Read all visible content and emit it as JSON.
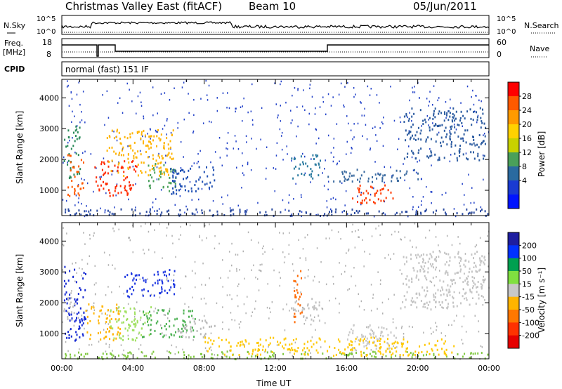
{
  "header": {
    "title": "Christmas Valley East (fitACF)",
    "beam": "Beam 10",
    "date": "05/Jun/2011"
  },
  "strip_top": {
    "left_label": "N.Sky",
    "right_label": "N.Search",
    "left_ticks": [
      "10^5",
      "10^0"
    ],
    "right_ticks": [
      "10^5",
      "10^0"
    ]
  },
  "strip_freq": {
    "left_label_1": "Freq.",
    "left_label_2": "[MHz]",
    "right_label": "Nave",
    "left_ticks": [
      "18",
      "8"
    ],
    "right_ticks": [
      "60",
      "0"
    ]
  },
  "cpid": {
    "label": "CPID",
    "mode": "normal (fast) 151 IF"
  },
  "chart_data": [
    {
      "type": "heatmap",
      "name": "power",
      "ylabel": "Slant Range [km]",
      "yticks": [
        "1000",
        "2000",
        "3000",
        "4000"
      ],
      "xlim_hours": [
        0,
        24
      ],
      "ylim_km": [
        180,
        4600
      ],
      "colorbar_label": "Power [dB]",
      "colorbar_ticks": [
        "28",
        "24",
        "20",
        "16",
        "12",
        "8",
        "4"
      ],
      "colors": [
        "#ff0000",
        "#ff5a00",
        "#ff9a00",
        "#ffd200",
        "#c8d200",
        "#4aa05a",
        "#2a6aa0",
        "#1a3ad2",
        "#0014ff"
      ],
      "scatter_color": "#2040c8",
      "features": [
        {
          "t0": 0.1,
          "t1": 1.0,
          "r0": 1400,
          "r1": 3100,
          "color": "#2a8a5a"
        },
        {
          "t0": 0.3,
          "t1": 1.2,
          "r0": 800,
          "r1": 2200,
          "color": "#ff5a00"
        },
        {
          "t0": 1.8,
          "t1": 4.2,
          "r0": 850,
          "r1": 2000,
          "color": "#ff2a00"
        },
        {
          "t0": 2.5,
          "t1": 6.3,
          "r0": 1500,
          "r1": 3000,
          "color": "#ffb400"
        },
        {
          "t0": 4.8,
          "t1": 6.5,
          "r0": 1000,
          "r1": 1900,
          "color": "#4aa05a"
        },
        {
          "t0": 6.0,
          "t1": 8.6,
          "r0": 900,
          "r1": 1800,
          "color": "#2050b4"
        },
        {
          "t0": 12.8,
          "t1": 14.5,
          "r0": 1400,
          "r1": 2200,
          "color": "#2a7aa0"
        },
        {
          "t0": 16.3,
          "t1": 18.8,
          "r0": 600,
          "r1": 1200,
          "color": "#ff3a00"
        },
        {
          "t0": 14.8,
          "t1": 20.0,
          "r0": 1300,
          "r1": 1700,
          "color": "#3a6aa0"
        },
        {
          "t0": 19.2,
          "t1": 23.8,
          "r0": 2000,
          "r1": 3700,
          "color": "#2a5aa0"
        },
        {
          "t0": 0.0,
          "t1": 24.0,
          "r0": 200,
          "r1": 420,
          "color": "#2a4aa0"
        }
      ]
    },
    {
      "type": "heatmap",
      "name": "velocity",
      "ylabel": "Slant Range [km]",
      "yticks": [
        "1000",
        "2000",
        "3000",
        "4000"
      ],
      "xlim_hours": [
        0,
        24
      ],
      "ylim_km": [
        180,
        4600
      ],
      "xticks": [
        "00:00",
        "04:00",
        "08:00",
        "12:00",
        "16:00",
        "20:00",
        "00:00"
      ],
      "xlabel": "Time UT",
      "colorbar_label": "Velocity [m s⁻¹]",
      "colorbar_ticks": [
        "200",
        "100",
        "50",
        "15",
        "-15",
        "-50",
        "-100",
        "-200"
      ],
      "colors": [
        "#1e1ea0",
        "#0032ff",
        "#00a050",
        "#80e040",
        "#c8c8c8",
        "#ffb400",
        "#ff7800",
        "#ff3200",
        "#e60000"
      ],
      "scatter_color": "#b0b0b0",
      "features": [
        {
          "t0": 0.1,
          "t1": 1.3,
          "r0": 800,
          "r1": 3200,
          "color": "#1428d2"
        },
        {
          "t0": 0.0,
          "t1": 0.7,
          "r0": 1500,
          "r1": 2300,
          "color": "#c0c0c0"
        },
        {
          "t0": 1.3,
          "t1": 3.3,
          "r0": 800,
          "r1": 2000,
          "color": "#ffb400"
        },
        {
          "t0": 2.6,
          "t1": 5.0,
          "r0": 800,
          "r1": 1900,
          "color": "#a0e060"
        },
        {
          "t0": 3.5,
          "t1": 6.3,
          "r0": 2200,
          "r1": 3100,
          "color": "#1a34e0"
        },
        {
          "t0": 4.5,
          "t1": 7.5,
          "r0": 900,
          "r1": 1800,
          "color": "#4ab050"
        },
        {
          "t0": 6.5,
          "t1": 8.6,
          "r0": 900,
          "r1": 1500,
          "color": "#b8b8b8"
        },
        {
          "t0": 12.8,
          "t1": 14.5,
          "r0": 1400,
          "r1": 2200,
          "color": "#c0c0c0"
        },
        {
          "t0": 13.0,
          "t1": 13.5,
          "r0": 1400,
          "r1": 3200,
          "color": "#ff6a00"
        },
        {
          "t0": 16.0,
          "t1": 18.8,
          "r0": 500,
          "r1": 1300,
          "color": "#c8c8c8"
        },
        {
          "t0": 19.0,
          "t1": 23.8,
          "r0": 1800,
          "r1": 3700,
          "color": "#c4c4c4"
        },
        {
          "t0": 0.0,
          "t1": 24.0,
          "r0": 200,
          "r1": 450,
          "color": "#80c840"
        },
        {
          "t0": 8.0,
          "t1": 22.0,
          "r0": 300,
          "r1": 900,
          "color": "#ffc800"
        }
      ]
    }
  ]
}
